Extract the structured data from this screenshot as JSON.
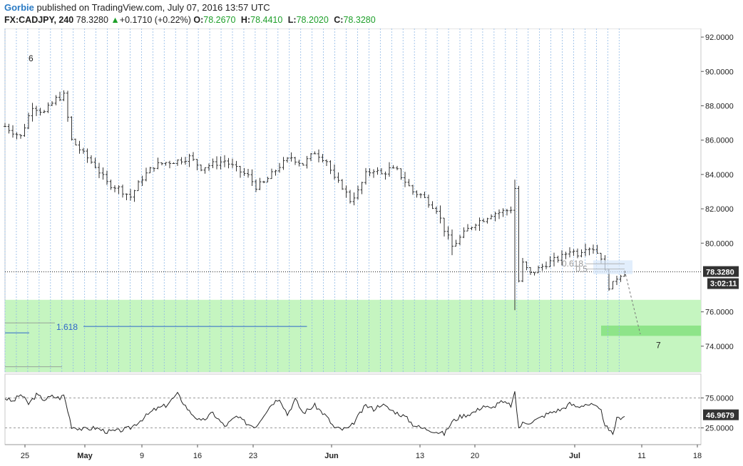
{
  "header": {
    "author": "Gorbie",
    "published_text": "published on TradingView.com, July 07, 2016 13:57 UTC",
    "symbol": "FX:CADJPY, 240",
    "last": "78.3280",
    "change_arrow": "▲",
    "change": "+0.1710 (+0.22%)",
    "o_label": "O:",
    "o_value": "78.2670",
    "h_label": "H:",
    "h_value": "78.4410",
    "l_label": "L:",
    "l_value": "78.2020",
    "c_label": "C:",
    "c_value": "78.3280"
  },
  "colors": {
    "up": "#1e9f2a",
    "zone": "#c5f5c0",
    "target_zone": "#7fe07a",
    "fib_line": "#2f66c9",
    "dashed_grid": "#8fb8e6",
    "price_tag_bg": "#333333"
  },
  "chart_data": [
    {
      "type": "candlestick",
      "title": "FX:CADJPY, 240",
      "x_tick_labels": [
        "25",
        "May",
        "9",
        "16",
        "23",
        "Jun",
        "13",
        "20",
        "Jul",
        "11",
        "18"
      ],
      "y_tick_labels": [
        "92.0000",
        "90.0000",
        "88.0000",
        "86.0000",
        "84.0000",
        "82.0000",
        "80.0000",
        "76.0000",
        "74.0000"
      ],
      "ylim": [
        72.5,
        92.5
      ],
      "close_path": [
        [
          0,
          86.8
        ],
        [
          4,
          86.2
        ],
        [
          7,
          88.0
        ],
        [
          10,
          87.6
        ],
        [
          13,
          88.4
        ],
        [
          15,
          88.6
        ],
        [
          17,
          86.0
        ],
        [
          20,
          85.2
        ],
        [
          23,
          84.5
        ],
        [
          26,
          83.5
        ],
        [
          29,
          83.2
        ],
        [
          32,
          82.7
        ],
        [
          35,
          83.8
        ],
        [
          38,
          84.5
        ],
        [
          41,
          84.7
        ],
        [
          44,
          84.8
        ],
        [
          47,
          85.0
        ],
        [
          50,
          84.4
        ],
        [
          53,
          84.6
        ],
        [
          56,
          84.8
        ],
        [
          59,
          84.3
        ],
        [
          62,
          83.9
        ],
        [
          64,
          83.3
        ],
        [
          66,
          83.5
        ],
        [
          68,
          84.0
        ],
        [
          70,
          84.5
        ],
        [
          73,
          85.0
        ],
        [
          76,
          84.6
        ],
        [
          79,
          85.3
        ],
        [
          82,
          84.8
        ],
        [
          84,
          83.7
        ],
        [
          86,
          83.3
        ],
        [
          88,
          82.5
        ],
        [
          90,
          83.0
        ],
        [
          92,
          84.0
        ],
        [
          94,
          84.3
        ],
        [
          96,
          84.0
        ],
        [
          98,
          84.3
        ],
        [
          100,
          84.2
        ],
        [
          102,
          83.6
        ],
        [
          104,
          83.0
        ],
        [
          106,
          82.8
        ],
        [
          108,
          82.4
        ],
        [
          110,
          82.0
        ],
        [
          112,
          80.8
        ],
        [
          114,
          79.8
        ],
        [
          116,
          80.3
        ],
        [
          118,
          80.8
        ],
        [
          120,
          81.2
        ],
        [
          122,
          81.4
        ],
        [
          124,
          81.7
        ],
        [
          126,
          81.8
        ],
        [
          128,
          81.9
        ],
        [
          129,
          82.0
        ],
        [
          130,
          83.2
        ],
        [
          131,
          77.8
        ],
        [
          132,
          78.8
        ],
        [
          134,
          78.2
        ],
        [
          136,
          78.5
        ],
        [
          138,
          78.8
        ],
        [
          140,
          79.0
        ],
        [
          142,
          79.2
        ],
        [
          144,
          79.6
        ],
        [
          146,
          79.4
        ],
        [
          148,
          79.8
        ],
        [
          150,
          79.7
        ],
        [
          152,
          79.2
        ],
        [
          153,
          78.3
        ],
        [
          154,
          77.5
        ],
        [
          155,
          77.6
        ],
        [
          156,
          78.0
        ],
        [
          157,
          78.2
        ],
        [
          158,
          78.3
        ]
      ],
      "current_price": "78.3280",
      "countdown": "3:02:11",
      "horizontal_line": 78.328,
      "support_zone": [
        72.5,
        76.7
      ],
      "target_zone": [
        74.6,
        75.2
      ],
      "fib_levels": [
        {
          "label": "1.618",
          "value": 75.15
        },
        {
          "label": "0.618",
          "value": 78.8
        },
        {
          "label": "0.5",
          "value": 78.5
        }
      ],
      "wave_labels": [
        {
          "label": "6",
          "value": 90.6
        },
        {
          "label": "7",
          "value": 73.9
        }
      ],
      "projection": [
        [
          158,
          78.4
        ],
        [
          162,
          74.7
        ]
      ]
    },
    {
      "type": "line",
      "indicator": "RSI",
      "y_tick_labels": [
        "75.0000",
        "25.0000"
      ],
      "ylim": [
        0,
        100
      ],
      "levels": [
        70,
        30
      ],
      "current_value": "46.9679",
      "path": [
        [
          0,
          70
        ],
        [
          2,
          65
        ],
        [
          4,
          75
        ],
        [
          6,
          62
        ],
        [
          8,
          74
        ],
        [
          10,
          68
        ],
        [
          12,
          72
        ],
        [
          14,
          70
        ],
        [
          15,
          74
        ],
        [
          17,
          32
        ],
        [
          20,
          28
        ],
        [
          23,
          30
        ],
        [
          26,
          25
        ],
        [
          29,
          26
        ],
        [
          32,
          30
        ],
        [
          35,
          42
        ],
        [
          38,
          54
        ],
        [
          41,
          60
        ],
        [
          44,
          75
        ],
        [
          47,
          52
        ],
        [
          50,
          38
        ],
        [
          53,
          50
        ],
        [
          56,
          32
        ],
        [
          59,
          45
        ],
        [
          62,
          35
        ],
        [
          64,
          32
        ],
        [
          66,
          48
        ],
        [
          68,
          62
        ],
        [
          70,
          70
        ],
        [
          72,
          48
        ],
        [
          74,
          68
        ],
        [
          76,
          50
        ],
        [
          79,
          60
        ],
        [
          82,
          45
        ],
        [
          84,
          30
        ],
        [
          86,
          28
        ],
        [
          88,
          30
        ],
        [
          90,
          45
        ],
        [
          92,
          60
        ],
        [
          94,
          55
        ],
        [
          96,
          62
        ],
        [
          98,
          55
        ],
        [
          100,
          50
        ],
        [
          102,
          45
        ],
        [
          104,
          35
        ],
        [
          106,
          30
        ],
        [
          108,
          28
        ],
        [
          110,
          25
        ],
        [
          112,
          22
        ],
        [
          114,
          38
        ],
        [
          116,
          45
        ],
        [
          118,
          48
        ],
        [
          120,
          52
        ],
        [
          122,
          60
        ],
        [
          124,
          55
        ],
        [
          126,
          65
        ],
        [
          128,
          62
        ],
        [
          129,
          60
        ],
        [
          130,
          76
        ],
        [
          131,
          30
        ],
        [
          132,
          36
        ],
        [
          134,
          38
        ],
        [
          136,
          42
        ],
        [
          138,
          48
        ],
        [
          140,
          52
        ],
        [
          142,
          55
        ],
        [
          144,
          62
        ],
        [
          146,
          58
        ],
        [
          148,
          62
        ],
        [
          150,
          60
        ],
        [
          152,
          52
        ],
        [
          153,
          35
        ],
        [
          154,
          25
        ],
        [
          155,
          22
        ],
        [
          156,
          42
        ],
        [
          157,
          44
        ],
        [
          158,
          47
        ]
      ]
    }
  ]
}
